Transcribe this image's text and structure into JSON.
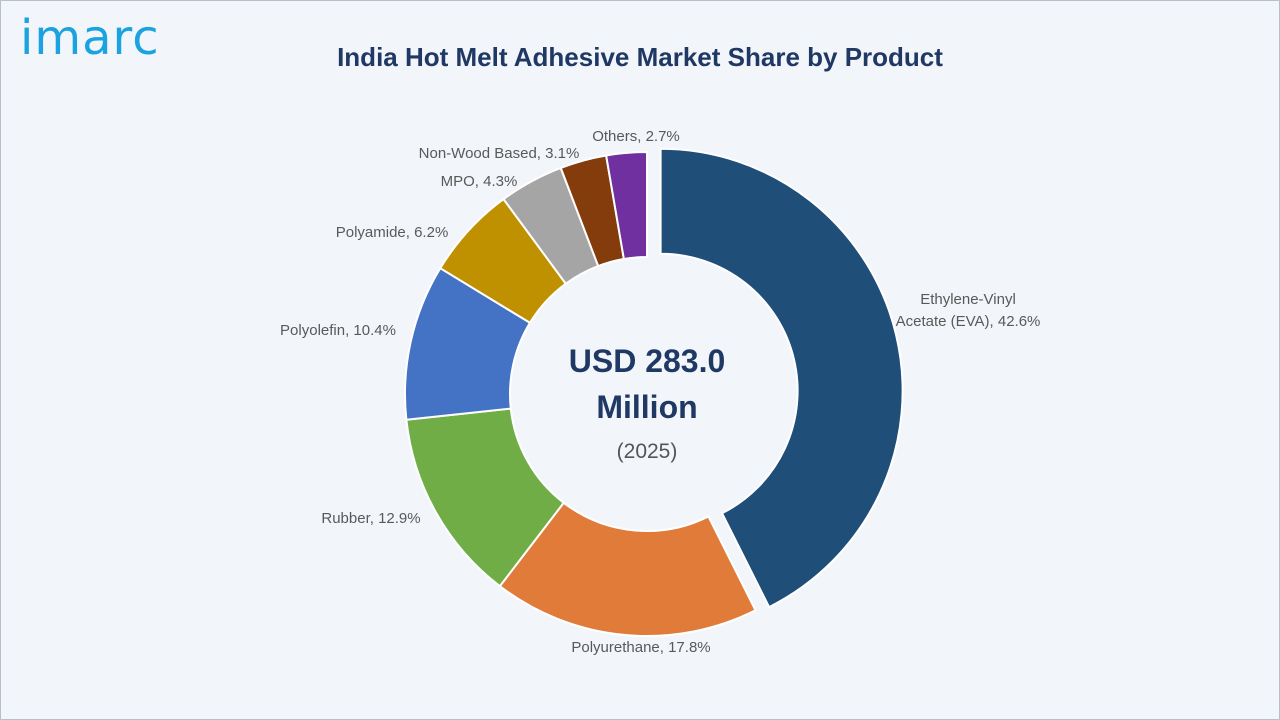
{
  "brand": {
    "logo_text": "imarc"
  },
  "chart_data": {
    "type": "pie",
    "title": "India Hot Melt Adhesive Market Share by Product",
    "center_label": {
      "value": "USD 283.0 Million",
      "value_line1": "USD 283.0",
      "value_line2": "Million",
      "year": "(2025)"
    },
    "slices": [
      {
        "name": "Ethylene-Vinyl Acetate (EVA)",
        "value": 42.6,
        "label_lines": [
          "Ethylene-Vinyl",
          "Acetate (EVA), 42.6%"
        ],
        "color": "#1f4e79",
        "exploded": true
      },
      {
        "name": "Polyurethane",
        "value": 17.8,
        "label_lines": [
          "Polyurethane, 17.8%"
        ],
        "color": "#e07b39"
      },
      {
        "name": "Rubber",
        "value": 12.9,
        "label_lines": [
          "Rubber, 12.9%"
        ],
        "color": "#70ad47"
      },
      {
        "name": "Polyolefin",
        "value": 10.4,
        "label_lines": [
          "Polyolefin, 10.4%"
        ],
        "color": "#4472c4"
      },
      {
        "name": "Polyamide",
        "value": 6.2,
        "label_lines": [
          "Polyamide, 6.2%"
        ],
        "color": "#bf9000"
      },
      {
        "name": "MPO",
        "value": 4.3,
        "label_lines": [
          "MPO, 4.3%"
        ],
        "color": "#a5a5a5"
      },
      {
        "name": "Non-Wood Based",
        "value": 3.1,
        "label_lines": [
          "Non-Wood Based, 3.1%"
        ],
        "color": "#843c0c"
      },
      {
        "name": "Others",
        "value": 2.7,
        "label_lines": [
          "Others, 2.7%"
        ],
        "color": "#7030a0"
      }
    ]
  }
}
